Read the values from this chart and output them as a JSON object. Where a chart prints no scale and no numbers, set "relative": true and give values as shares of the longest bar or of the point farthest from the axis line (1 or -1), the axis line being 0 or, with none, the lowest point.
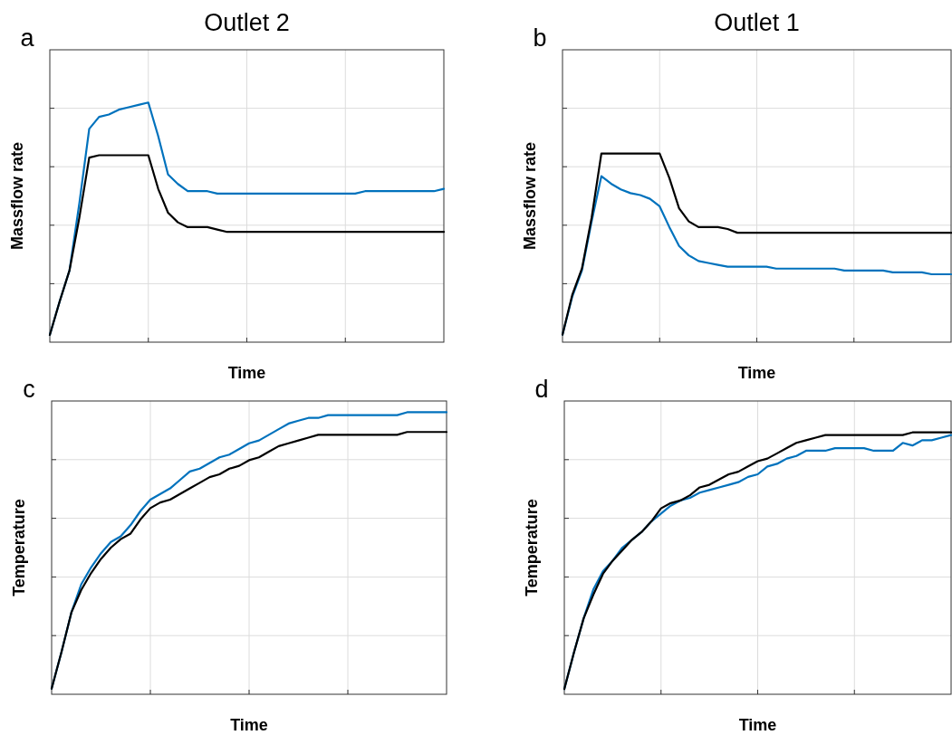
{
  "chart_data": [
    {
      "type": "line",
      "title": "Outlet 2",
      "xlabel": "Time",
      "ylabel": "Massflow rate",
      "annotations": [
        "a"
      ],
      "relative": true,
      "grid": true,
      "categories": [
        null,
        null,
        null,
        null,
        null,
        null,
        null,
        null,
        null,
        null,
        null,
        null,
        null,
        null,
        null,
        null,
        null,
        null,
        null,
        null,
        null,
        null,
        null,
        null,
        null,
        null,
        null,
        null,
        null,
        null,
        null,
        null,
        null,
        null,
        null,
        null,
        null,
        null,
        null,
        null,
        null
      ],
      "series": [
        {
          "color": "#0072bd",
          "values": [
            0.03,
            0.17,
            0.3,
            0.58,
            0.89,
            0.94,
            0.95,
            0.97,
            0.98,
            0.99,
            1,
            0.86,
            0.7,
            0.66,
            0.63,
            0.63,
            0.63,
            0.62,
            0.62,
            0.62,
            0.62,
            0.62,
            0.62,
            0.62,
            0.62,
            0.62,
            0.62,
            0.62,
            0.62,
            0.62,
            0.62,
            0.62,
            0.63,
            0.63,
            0.63,
            0.63,
            0.63,
            0.63,
            0.63,
            0.63,
            0.64
          ]
        },
        {
          "color": "#000000",
          "values": [
            0.03,
            0.17,
            0.3,
            0.52,
            0.77,
            0.78,
            0.78,
            0.78,
            0.78,
            0.78,
            0.78,
            0.64,
            0.54,
            0.5,
            0.48,
            0.48,
            0.48,
            0.47,
            0.46,
            0.46,
            0.46,
            0.46,
            0.46,
            0.46,
            0.46,
            0.46,
            0.46,
            0.46,
            0.46,
            0.46,
            0.46,
            0.46,
            0.46,
            0.46,
            0.46,
            0.46,
            0.46,
            0.46,
            0.46,
            0.46,
            0.46
          ]
        }
      ]
    },
    {
      "type": "line",
      "title": "Outlet 1",
      "xlabel": "Time",
      "ylabel": "Massflow rate",
      "annotations": [
        "b"
      ],
      "relative": true,
      "grid": true,
      "categories": [
        null,
        null,
        null,
        null,
        null,
        null,
        null,
        null,
        null,
        null,
        null,
        null,
        null,
        null,
        null,
        null,
        null,
        null,
        null,
        null,
        null,
        null,
        null,
        null,
        null,
        null,
        null,
        null,
        null,
        null,
        null,
        null,
        null,
        null,
        null,
        null,
        null,
        null,
        null,
        null,
        null
      ],
      "series": [
        {
          "color": "#0072bd",
          "values": [
            0.04,
            0.24,
            0.38,
            0.64,
            0.88,
            0.84,
            0.81,
            0.79,
            0.78,
            0.76,
            0.72,
            0.61,
            0.51,
            0.46,
            0.43,
            0.42,
            0.41,
            0.4,
            0.4,
            0.4,
            0.4,
            0.4,
            0.39,
            0.39,
            0.39,
            0.39,
            0.39,
            0.39,
            0.39,
            0.38,
            0.38,
            0.38,
            0.38,
            0.38,
            0.37,
            0.37,
            0.37,
            0.37,
            0.36,
            0.36,
            0.36
          ]
        },
        {
          "color": "#000000",
          "values": [
            0.04,
            0.25,
            0.39,
            0.66,
            1,
            1,
            1,
            1,
            1,
            1,
            1,
            0.87,
            0.71,
            0.64,
            0.61,
            0.61,
            0.61,
            0.6,
            0.58,
            0.58,
            0.58,
            0.58,
            0.58,
            0.58,
            0.58,
            0.58,
            0.58,
            0.58,
            0.58,
            0.58,
            0.58,
            0.58,
            0.58,
            0.58,
            0.58,
            0.58,
            0.58,
            0.58,
            0.58,
            0.58,
            0.58
          ]
        }
      ]
    },
    {
      "type": "line",
      "xlabel": "Time",
      "ylabel": "Temperature",
      "annotations": [
        "c"
      ],
      "relative": true,
      "grid": true,
      "categories": [
        null,
        null,
        null,
        null,
        null,
        null,
        null,
        null,
        null,
        null,
        null,
        null,
        null,
        null,
        null,
        null,
        null,
        null,
        null,
        null,
        null,
        null,
        null,
        null,
        null,
        null,
        null,
        null,
        null,
        null,
        null,
        null,
        null,
        null,
        null,
        null,
        null,
        null,
        null,
        null,
        null
      ],
      "series": [
        {
          "color": "#0072bd",
          "values": [
            0.02,
            0.15,
            0.29,
            0.39,
            0.45,
            0.5,
            0.54,
            0.56,
            0.6,
            0.65,
            0.69,
            0.71,
            0.73,
            0.76,
            0.79,
            0.8,
            0.82,
            0.84,
            0.85,
            0.87,
            0.89,
            0.9,
            0.92,
            0.94,
            0.96,
            0.97,
            0.98,
            0.98,
            0.99,
            0.99,
            0.99,
            0.99,
            0.99,
            0.99,
            0.99,
            0.99,
            1,
            1,
            1,
            1,
            1
          ]
        },
        {
          "color": "#000000",
          "values": [
            0.02,
            0.15,
            0.29,
            0.37,
            0.43,
            0.48,
            0.52,
            0.55,
            0.57,
            0.62,
            0.66,
            0.68,
            0.69,
            0.71,
            0.73,
            0.75,
            0.77,
            0.78,
            0.8,
            0.81,
            0.83,
            0.84,
            0.86,
            0.88,
            0.89,
            0.9,
            0.91,
            0.92,
            0.92,
            0.92,
            0.92,
            0.92,
            0.92,
            0.92,
            0.92,
            0.92,
            0.93,
            0.93,
            0.93,
            0.93,
            0.93
          ]
        }
      ]
    },
    {
      "type": "line",
      "xlabel": "Time",
      "ylabel": "Temperature",
      "annotations": [
        "d"
      ],
      "relative": true,
      "grid": true,
      "categories": [
        null,
        null,
        null,
        null,
        null,
        null,
        null,
        null,
        null,
        null,
        null,
        null,
        null,
        null,
        null,
        null,
        null,
        null,
        null,
        null,
        null,
        null,
        null,
        null,
        null,
        null,
        null,
        null,
        null,
        null,
        null,
        null,
        null,
        null,
        null,
        null,
        null,
        null,
        null,
        null,
        null
      ],
      "series": [
        {
          "color": "#0072bd",
          "values": [
            0.02,
            0.16,
            0.29,
            0.4,
            0.47,
            0.51,
            0.56,
            0.59,
            0.62,
            0.66,
            0.69,
            0.72,
            0.74,
            0.75,
            0.77,
            0.78,
            0.79,
            0.8,
            0.81,
            0.83,
            0.84,
            0.87,
            0.88,
            0.9,
            0.91,
            0.93,
            0.93,
            0.93,
            0.94,
            0.94,
            0.94,
            0.94,
            0.93,
            0.93,
            0.93,
            0.96,
            0.95,
            0.97,
            0.97,
            0.98,
            0.99
          ]
        },
        {
          "color": "#000000",
          "values": [
            0.02,
            0.16,
            0.29,
            0.38,
            0.46,
            0.51,
            0.55,
            0.59,
            0.62,
            0.66,
            0.71,
            0.73,
            0.74,
            0.76,
            0.79,
            0.8,
            0.82,
            0.84,
            0.85,
            0.87,
            0.89,
            0.9,
            0.92,
            0.94,
            0.96,
            0.97,
            0.98,
            0.99,
            0.99,
            0.99,
            0.99,
            0.99,
            0.99,
            0.99,
            0.99,
            0.99,
            1,
            1,
            1,
            1,
            1
          ]
        }
      ]
    }
  ]
}
